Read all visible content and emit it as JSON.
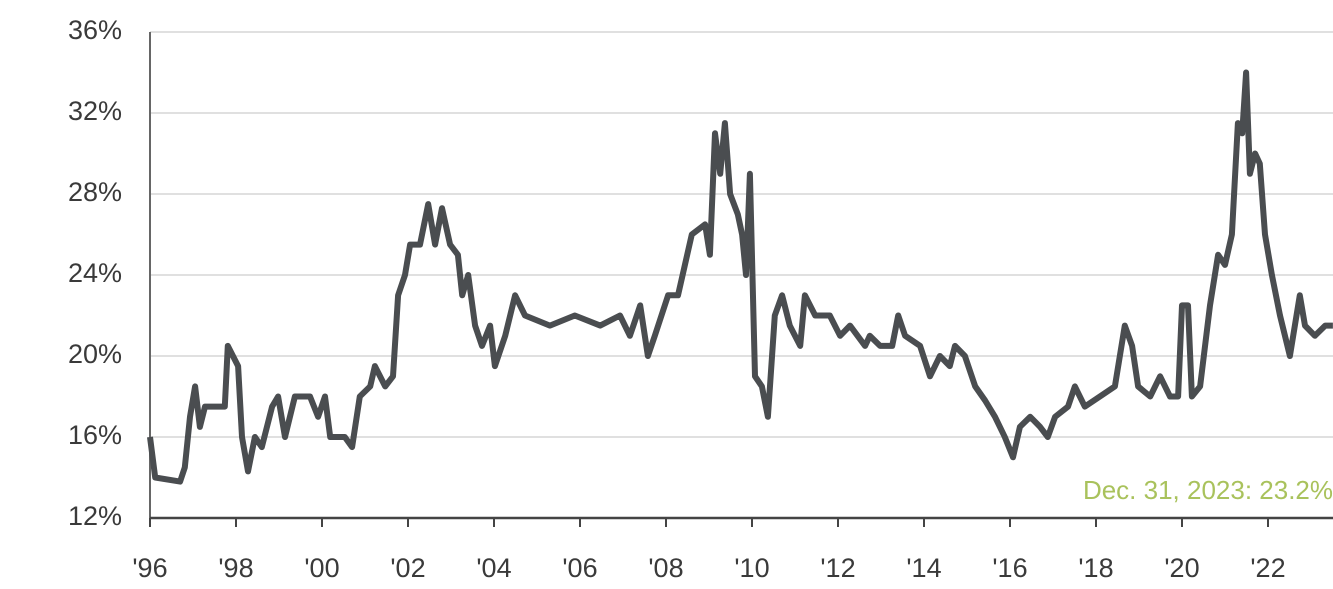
{
  "chart_data": {
    "type": "line",
    "x": [
      1996.0,
      1996.12,
      1996.7,
      1996.81,
      1996.93,
      1997.05,
      1997.16,
      1997.28,
      1997.74,
      1997.81,
      1998.05,
      1998.14,
      1998.28,
      1998.44,
      1998.6,
      1998.84,
      1998.98,
      1999.14,
      1999.37,
      1999.72,
      1999.91,
      2000.07,
      2000.19,
      2000.53,
      2000.7,
      2000.88,
      2001.12,
      2001.23,
      2001.47,
      2001.65,
      2001.77,
      2001.93,
      2002.05,
      2002.28,
      2002.47,
      2002.63,
      2002.79,
      2002.98,
      2003.16,
      2003.26,
      2003.4,
      2003.56,
      2003.72,
      2003.91,
      2004.02,
      2004.26,
      2004.49,
      2004.72,
      2005.3,
      2005.88,
      2006.47,
      2006.93,
      2007.16,
      2007.4,
      2007.58,
      2007.74,
      2008.05,
      2008.28,
      2008.44,
      2008.6,
      2008.91,
      2009.02,
      2009.14,
      2009.26,
      2009.37,
      2009.49,
      2009.67,
      2009.77,
      2009.86,
      2009.95,
      2010.07,
      2010.23,
      2010.37,
      2010.53,
      2010.7,
      2010.88,
      2011.12,
      2011.23,
      2011.47,
      2011.81,
      2012.05,
      2012.28,
      2012.63,
      2012.74,
      2012.98,
      2013.26,
      2013.4,
      2013.56,
      2013.91,
      2014.14,
      2014.37,
      2014.6,
      2014.72,
      2014.95,
      2015.19,
      2015.42,
      2015.65,
      2015.88,
      2016.07,
      2016.23,
      2016.47,
      2016.7,
      2016.88,
      2017.05,
      2017.35,
      2017.51,
      2017.74,
      2018.09,
      2018.44,
      2018.67,
      2018.84,
      2018.98,
      2019.26,
      2019.49,
      2019.72,
      2019.91,
      2020.0,
      2020.14,
      2020.23,
      2020.42,
      2020.65,
      2020.84,
      2021.0,
      2021.16,
      2021.3,
      2021.4,
      2021.49,
      2021.58,
      2021.7,
      2021.81,
      2021.93,
      2022.09,
      2022.28,
      2022.51,
      2022.74,
      2022.86,
      2023.09,
      2023.33,
      2023.51
    ],
    "series": [
      {
        "color": "#4a4d50",
        "values": [
          16,
          14,
          13.8,
          14.5,
          17,
          18.5,
          16.5,
          17.5,
          17.5,
          20.5,
          19.5,
          16,
          14.3,
          16,
          15.5,
          17.5,
          18,
          16,
          18,
          18,
          17,
          18,
          16,
          16,
          15.5,
          18,
          18.5,
          19.5,
          18.5,
          19,
          23,
          24,
          25.5,
          25.5,
          27.5,
          25.5,
          27.3,
          25.5,
          25,
          23,
          24,
          21.5,
          20.5,
          21.5,
          19.5,
          21,
          23,
          22,
          21.5,
          22,
          21.5,
          22,
          21,
          22.5,
          20,
          21,
          23,
          23,
          24.5,
          26,
          26.5,
          25,
          31,
          29,
          31.5,
          28,
          27,
          26,
          24,
          29,
          19,
          18.5,
          17,
          22,
          23,
          21.5,
          20.5,
          23,
          22,
          22,
          21,
          21.5,
          20.5,
          21,
          20.5,
          20.5,
          22,
          21,
          20.5,
          19,
          20,
          19.5,
          20.5,
          20,
          18.5,
          17.8,
          17,
          16,
          15,
          16.5,
          17,
          16.5,
          16,
          17,
          17.5,
          18.5,
          17.5,
          18,
          18.5,
          21.5,
          20.5,
          18.5,
          18,
          19,
          18,
          18,
          22.5,
          22.5,
          18,
          18.5,
          22.5,
          25,
          24.5,
          26,
          31.5,
          31,
          34,
          29,
          30,
          29.5,
          26,
          24,
          22,
          20,
          23,
          21.5,
          21,
          21.5,
          21.5
        ]
      }
    ],
    "xlim": [
      1996,
      2023.5
    ],
    "xticks": [
      {
        "value": 1996,
        "label": "'96"
      },
      {
        "value": 1998,
        "label": "'98"
      },
      {
        "value": 2000,
        "label": "'00"
      },
      {
        "value": 2002,
        "label": "'02"
      },
      {
        "value": 2004,
        "label": "'04"
      },
      {
        "value": 2006,
        "label": "'06"
      },
      {
        "value": 2008,
        "label": "'08"
      },
      {
        "value": 2010,
        "label": "'10"
      },
      {
        "value": 2012,
        "label": "'12"
      },
      {
        "value": 2014,
        "label": "'14"
      },
      {
        "value": 2016,
        "label": "'16"
      },
      {
        "value": 2018,
        "label": "'18"
      },
      {
        "value": 2020,
        "label": "'20"
      },
      {
        "value": 2022,
        "label": "'22"
      }
    ],
    "ylim": [
      12,
      36
    ],
    "yticks": [
      {
        "value": 12,
        "label": "12%"
      },
      {
        "value": 16,
        "label": "16%"
      },
      {
        "value": 20,
        "label": "20%"
      },
      {
        "value": 24,
        "label": "24%"
      },
      {
        "value": 28,
        "label": "28%"
      },
      {
        "value": 32,
        "label": "32%"
      },
      {
        "value": 36,
        "label": "36%"
      }
    ],
    "grid": true,
    "annotation": "Dec. 31, 2023: 23.2%"
  }
}
